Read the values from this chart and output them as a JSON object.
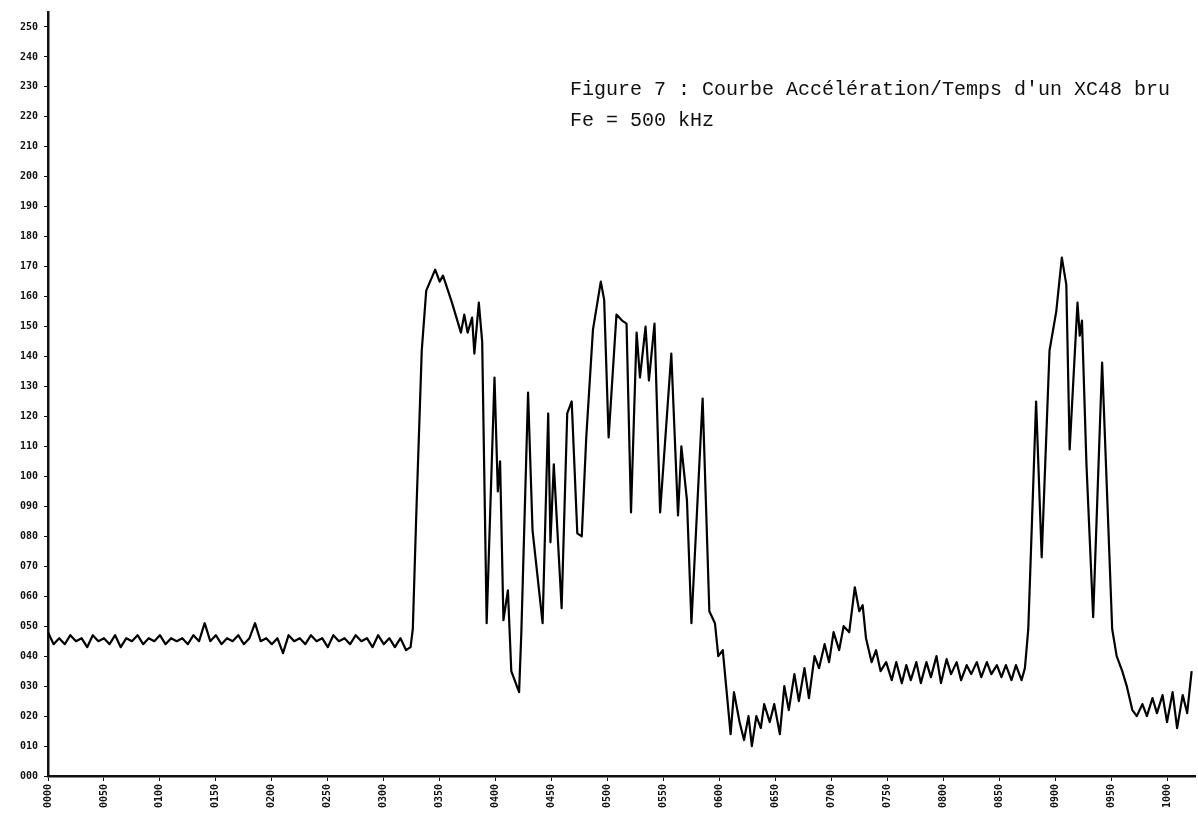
{
  "chart_data": {
    "type": "line",
    "title": "Figure 7 : Courbe Accélération/Temps d'un XC48 bru",
    "subtitle": "Fe = 500 kHz",
    "xlim": [
      0,
      1025
    ],
    "ylim": [
      0,
      255
    ],
    "xticks": [
      {
        "value": 0,
        "label": "0000"
      },
      {
        "value": 50,
        "label": "0050"
      },
      {
        "value": 100,
        "label": "0100"
      },
      {
        "value": 150,
        "label": "0150"
      },
      {
        "value": 200,
        "label": "0200"
      },
      {
        "value": 250,
        "label": "0250"
      },
      {
        "value": 300,
        "label": "0300"
      },
      {
        "value": 350,
        "label": "0350"
      },
      {
        "value": 400,
        "label": "0400"
      },
      {
        "value": 450,
        "label": "0450"
      },
      {
        "value": 500,
        "label": "0500"
      },
      {
        "value": 550,
        "label": "0550"
      },
      {
        "value": 600,
        "label": "0600"
      },
      {
        "value": 650,
        "label": "0650"
      },
      {
        "value": 700,
        "label": "0700"
      },
      {
        "value": 750,
        "label": "0750"
      },
      {
        "value": 800,
        "label": "0800"
      },
      {
        "value": 850,
        "label": "0850"
      },
      {
        "value": 900,
        "label": "0900"
      },
      {
        "value": 950,
        "label": "0950"
      },
      1000
    ],
    "yticks": [
      {
        "value": 0,
        "label": "000"
      },
      {
        "value": 10,
        "label": "010"
      },
      {
        "value": 20,
        "label": "020"
      },
      {
        "value": 30,
        "label": "030"
      },
      {
        "value": 40,
        "label": "040"
      },
      {
        "value": 50,
        "label": "050"
      },
      {
        "value": 60,
        "label": "060"
      },
      {
        "value": 70,
        "label": "070"
      },
      {
        "value": 80,
        "label": "080"
      },
      {
        "value": 90,
        "label": "090"
      },
      100,
      110,
      120,
      130,
      140,
      150,
      160,
      170,
      180,
      190,
      200,
      210,
      220,
      230,
      240,
      250
    ],
    "grid": false,
    "legend": false,
    "marker": "none",
    "line_style": "solid",
    "series": [
      {
        "color": "#000000",
        "x": [
          0,
          5,
          10,
          15,
          20,
          25,
          30,
          35,
          40,
          45,
          50,
          55,
          60,
          65,
          70,
          75,
          80,
          85,
          90,
          95,
          100,
          105,
          110,
          115,
          120,
          125,
          130,
          135,
          140,
          145,
          150,
          155,
          160,
          165,
          170,
          175,
          180,
          185,
          190,
          195,
          200,
          205,
          210,
          215,
          220,
          225,
          230,
          235,
          240,
          245,
          250,
          255,
          260,
          265,
          270,
          275,
          280,
          285,
          290,
          295,
          300,
          305,
          310,
          315,
          320,
          324,
          326,
          329,
          334,
          338,
          346,
          350,
          353,
          361,
          369,
          372,
          375,
          379,
          381,
          385,
          388,
          392,
          399,
          402,
          404,
          407,
          411,
          414,
          421,
          423,
          429,
          433,
          442,
          447,
          449,
          452,
          459,
          464,
          468,
          473,
          477,
          481,
          487,
          494,
          497,
          501,
          508,
          513,
          517,
          521,
          526,
          529,
          534,
          537,
          542,
          547,
          557,
          563,
          566,
          571,
          575,
          585,
          591,
          596,
          599,
          603,
          606,
          610,
          613,
          618,
          622,
          626,
          629,
          633,
          637,
          640,
          645,
          649,
          654,
          658,
          662,
          667,
          671,
          676,
          680,
          685,
          689,
          694,
          698,
          702,
          707,
          711,
          716,
          721,
          725,
          728,
          731,
          736,
          740,
          744,
          749,
          754,
          758,
          763,
          767,
          771,
          776,
          780,
          785,
          789,
          794,
          798,
          803,
          807,
          812,
          816,
          821,
          825,
          830,
          834,
          839,
          843,
          848,
          852,
          856,
          861,
          865,
          870,
          873,
          876,
          883,
          888,
          895,
          901,
          906,
          910,
          913,
          920,
          922,
          924,
          928,
          934,
          942,
          951,
          955,
          960,
          964,
          969,
          973,
          978,
          982,
          987,
          991,
          996,
          1000,
          1005,
          1009,
          1014,
          1018,
          1022
        ],
        "values": [
          48,
          44,
          46,
          44,
          47,
          45,
          46,
          43,
          47,
          45,
          46,
          44,
          47,
          43,
          46,
          45,
          47,
          44,
          46,
          45,
          47,
          44,
          46,
          45,
          46,
          44,
          47,
          45,
          51,
          45,
          47,
          44,
          46,
          45,
          47,
          44,
          46,
          51,
          45,
          46,
          44,
          46,
          41,
          47,
          45,
          46,
          44,
          47,
          45,
          46,
          43,
          47,
          45,
          46,
          44,
          47,
          45,
          46,
          43,
          47,
          44,
          46,
          43,
          46,
          42,
          43,
          49,
          86,
          142,
          162,
          169,
          165,
          167,
          158,
          148,
          154,
          148,
          153,
          141,
          158,
          145,
          51,
          133,
          95,
          105,
          52,
          62,
          35,
          28,
          48,
          128,
          82,
          51,
          121,
          78,
          104,
          56,
          121,
          125,
          81,
          80,
          113,
          149,
          165,
          159,
          113,
          154,
          152,
          151,
          88,
          148,
          133,
          150,
          132,
          151,
          88,
          141,
          87,
          110,
          92,
          51,
          126,
          55,
          51,
          40,
          42,
          30,
          14,
          28,
          18,
          12,
          20,
          10,
          20,
          16,
          24,
          18,
          24,
          14,
          30,
          22,
          34,
          25,
          36,
          26,
          40,
          36,
          44,
          38,
          48,
          42,
          50,
          48,
          63,
          55,
          57,
          46,
          38,
          42,
          35,
          38,
          32,
          38,
          31,
          37,
          32,
          38,
          31,
          38,
          33,
          40,
          31,
          39,
          34,
          38,
          32,
          37,
          34,
          38,
          33,
          38,
          34,
          37,
          33,
          37,
          32,
          37,
          32,
          36,
          49,
          125,
          73,
          142,
          155,
          173,
          164,
          109,
          158,
          147,
          152,
          104,
          53,
          138,
          49,
          40,
          35,
          30,
          22,
          20,
          24,
          20,
          26,
          21,
          27,
          18,
          28,
          16,
          27,
          21,
          35
        ]
      }
    ]
  }
}
